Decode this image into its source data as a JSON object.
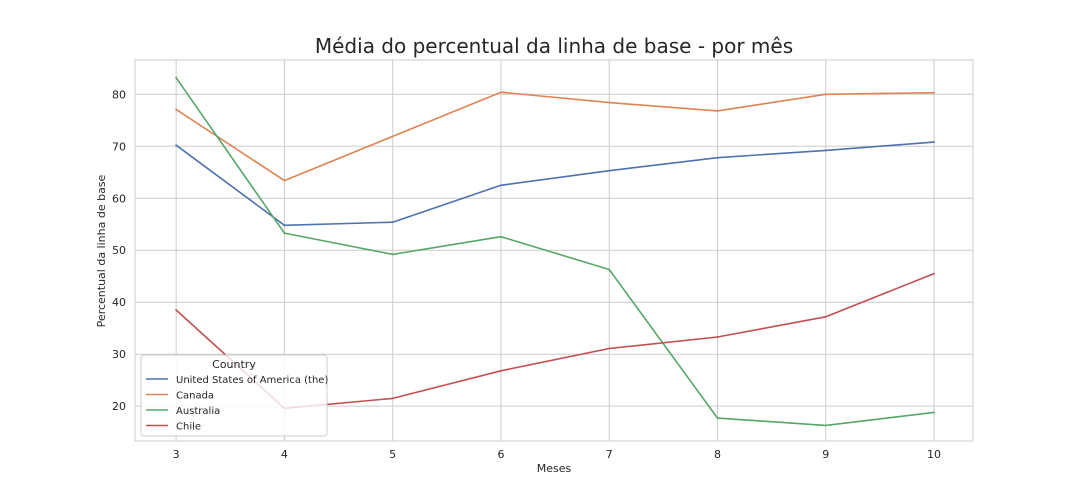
{
  "chart_data": {
    "type": "line",
    "title": "Média do percentual da linha de base - por mês",
    "xlabel": "Meses",
    "ylabel": "Percentual da linha de base",
    "x": [
      3,
      4,
      5,
      6,
      7,
      8,
      9,
      10
    ],
    "xlim": [
      2.62,
      10.36
    ],
    "ylim": [
      13.3,
      86.6
    ],
    "xticks": [
      3,
      4,
      5,
      6,
      7,
      8,
      9,
      10
    ],
    "yticks": [
      20,
      30,
      40,
      50,
      60,
      70,
      80
    ],
    "grid": true,
    "legend": {
      "title": "Country",
      "placement": "lower-left"
    },
    "series": [
      {
        "name": "United States of America (the)",
        "color": "#4c72b0",
        "values": [
          70.2,
          54.8,
          55.4,
          62.5,
          65.3,
          67.8,
          69.2,
          70.8
        ]
      },
      {
        "name": "Canada",
        "color": "#dd8452",
        "values": [
          77.1,
          63.4,
          71.9,
          80.4,
          78.4,
          76.8,
          80.0,
          80.3
        ]
      },
      {
        "name": "Australia",
        "color": "#55a868",
        "values": [
          83.2,
          53.3,
          49.2,
          52.6,
          46.3,
          17.7,
          16.3,
          18.8
        ]
      },
      {
        "name": "Chile",
        "color": "#c44e52",
        "values": [
          38.5,
          19.6,
          21.5,
          26.8,
          31.1,
          33.3,
          37.2,
          45.5
        ]
      }
    ]
  }
}
